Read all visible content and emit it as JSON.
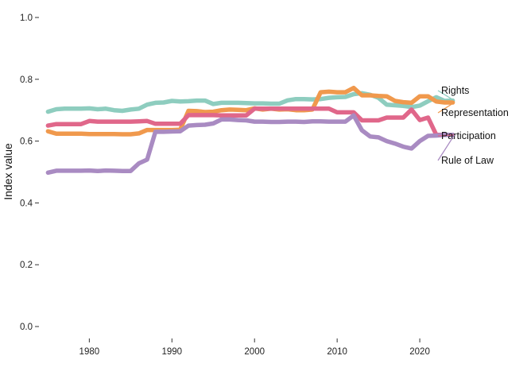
{
  "chart_data": {
    "type": "line",
    "title": "",
    "xlabel": "",
    "ylabel": "Index value",
    "xlim": [
      1974,
      2030
    ],
    "ylim": [
      0,
      1
    ],
    "x_ticks": [
      1980,
      1990,
      2000,
      2010,
      2020
    ],
    "y_ticks": [
      0,
      0.2,
      0.4,
      0.6,
      0.8,
      1.0
    ],
    "y_tick_labels": [
      "0.0",
      "0.2",
      "0.4",
      "0.6",
      "0.8",
      "1.0"
    ],
    "grid": false,
    "legend": "direct labels at right end of lines",
    "x": [
      1975,
      1976,
      1977,
      1978,
      1979,
      1980,
      1981,
      1982,
      1983,
      1984,
      1985,
      1986,
      1987,
      1988,
      1989,
      1990,
      1991,
      1992,
      1993,
      1994,
      1995,
      1996,
      1997,
      1998,
      1999,
      2000,
      2001,
      2002,
      2003,
      2004,
      2005,
      2006,
      2007,
      2008,
      2009,
      2010,
      2011,
      2012,
      2013,
      2014,
      2015,
      2016,
      2017,
      2018,
      2019,
      2020,
      2021,
      2022,
      2023,
      2024
    ],
    "series": [
      {
        "name": "Rights",
        "color": "#8ecdbf",
        "values": [
          0.695,
          0.703,
          0.705,
          0.705,
          0.705,
          0.706,
          0.703,
          0.705,
          0.7,
          0.698,
          0.702,
          0.705,
          0.718,
          0.724,
          0.725,
          0.73,
          0.728,
          0.729,
          0.731,
          0.731,
          0.72,
          0.724,
          0.724,
          0.724,
          0.723,
          0.722,
          0.722,
          0.721,
          0.721,
          0.732,
          0.736,
          0.736,
          0.735,
          0.736,
          0.74,
          0.742,
          0.743,
          0.752,
          0.755,
          0.75,
          0.74,
          0.718,
          0.716,
          0.714,
          0.71,
          0.715,
          0.729,
          0.742,
          0.73,
          0.731
        ]
      },
      {
        "name": "Representation",
        "color": "#f0994d",
        "values": [
          0.632,
          0.624,
          0.624,
          0.624,
          0.624,
          0.623,
          0.623,
          0.623,
          0.623,
          0.622,
          0.622,
          0.625,
          0.636,
          0.636,
          0.636,
          0.636,
          0.637,
          0.698,
          0.697,
          0.694,
          0.695,
          0.7,
          0.702,
          0.701,
          0.7,
          0.706,
          0.702,
          0.705,
          0.702,
          0.703,
          0.7,
          0.7,
          0.702,
          0.758,
          0.76,
          0.758,
          0.758,
          0.772,
          0.748,
          0.748,
          0.746,
          0.745,
          0.73,
          0.726,
          0.724,
          0.745,
          0.745,
          0.728,
          0.725,
          0.725
        ]
      },
      {
        "name": "Participation",
        "color": "#e0678a",
        "values": [
          0.65,
          0.655,
          0.655,
          0.655,
          0.655,
          0.665,
          0.663,
          0.663,
          0.663,
          0.663,
          0.663,
          0.664,
          0.665,
          0.656,
          0.656,
          0.656,
          0.656,
          0.684,
          0.684,
          0.684,
          0.684,
          0.683,
          0.683,
          0.683,
          0.683,
          0.705,
          0.705,
          0.705,
          0.705,
          0.705,
          0.705,
          0.705,
          0.705,
          0.705,
          0.705,
          0.693,
          0.693,
          0.693,
          0.667,
          0.667,
          0.667,
          0.676,
          0.676,
          0.676,
          0.702,
          0.668,
          0.676,
          0.62,
          0.62,
          0.62
        ]
      },
      {
        "name": "Rule of Law",
        "color": "#a98bc2",
        "values": [
          0.498,
          0.504,
          0.504,
          0.504,
          0.504,
          0.505,
          0.503,
          0.505,
          0.504,
          0.503,
          0.503,
          0.528,
          0.54,
          0.63,
          0.63,
          0.631,
          0.632,
          0.65,
          0.652,
          0.653,
          0.657,
          0.67,
          0.67,
          0.668,
          0.667,
          0.663,
          0.663,
          0.662,
          0.662,
          0.663,
          0.663,
          0.662,
          0.664,
          0.664,
          0.663,
          0.663,
          0.663,
          0.683,
          0.635,
          0.615,
          0.612,
          0.6,
          0.592,
          0.582,
          0.576,
          0.6,
          0.617,
          0.618,
          0.62,
          0.62
        ]
      }
    ]
  }
}
